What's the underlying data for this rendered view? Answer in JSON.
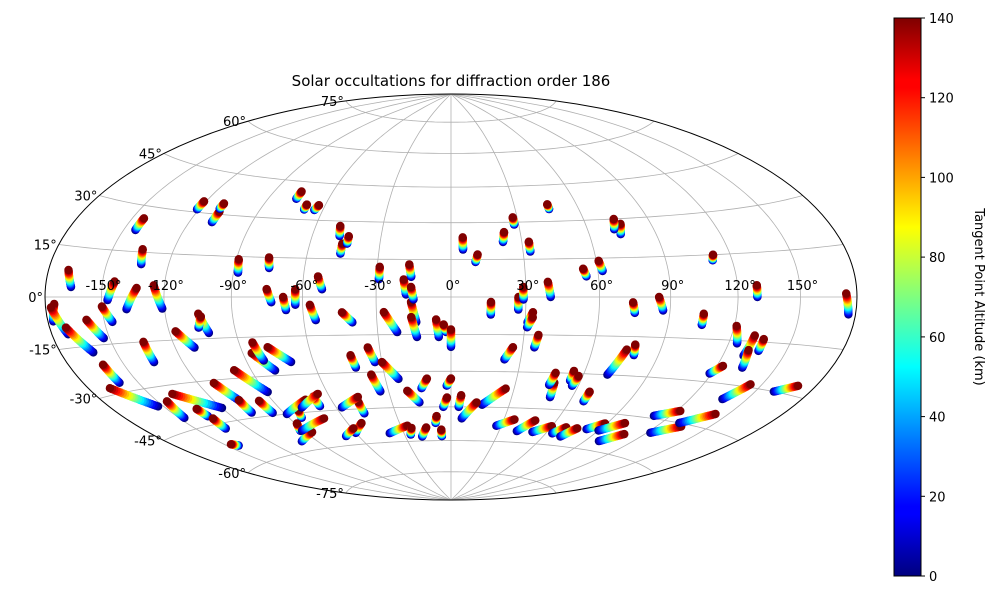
{
  "chart_data": {
    "type": "scatter",
    "projection": "hammer",
    "title": "Solar occultations for diffraction order 186",
    "colorbar": {
      "label": "Tangent Point Altitude (km)",
      "range": [
        0,
        140
      ],
      "ticks": [
        0,
        20,
        40,
        60,
        80,
        100,
        120,
        140
      ],
      "colormap": "jet"
    },
    "lon_ticks": [
      -150,
      -120,
      -90,
      -60,
      -30,
      0,
      30,
      60,
      90,
      120,
      150
    ],
    "lon_tick_labels": [
      "-150°",
      "-120°",
      "-90°",
      "-60°",
      "-30°",
      "0°",
      "30°",
      "60°",
      "90°",
      "120°",
      "150°"
    ],
    "lat_ticks": [
      -75,
      -60,
      -45,
      -30,
      -15,
      0,
      15,
      30,
      45,
      60,
      75
    ],
    "lat_tick_labels": [
      "-75°",
      "-60°",
      "-45°",
      "-30°",
      "-15°",
      "0°",
      "15°",
      "30°",
      "45°",
      "60°",
      "75°"
    ],
    "grid": true,
    "alt_range": [
      0,
      140
    ],
    "tracks": [
      [
        -177,
        -7,
        -175,
        -2
      ],
      [
        -171,
        -11,
        -177,
        -3
      ],
      [
        -162,
        -17,
        -171,
        -9
      ],
      [
        -166,
        3,
        -169,
        8
      ],
      [
        -153,
        -13,
        -159,
        -7
      ],
      [
        -146,
        -8,
        -150,
        -3
      ],
      [
        -147,
        -1,
        -144,
        5
      ],
      [
        -144,
        22,
        -144,
        26
      ],
      [
        -133,
        11,
        -135,
        16
      ],
      [
        -138,
        -4,
        -133,
        3
      ],
      [
        -121,
        -4,
        -125,
        4
      ],
      [
        -111,
        -18,
        -117,
        -12
      ],
      [
        -109,
        27,
        -109,
        31
      ],
      [
        -121,
        31,
        -121,
        34
      ],
      [
        -110,
        32,
        -110,
        34
      ],
      [
        -102,
        -13,
        -105,
        -6
      ],
      [
        -106,
        -11,
        -104,
        -7
      ],
      [
        -134,
        -22,
        -134,
        -15
      ],
      [
        -160,
        -27,
        -161,
        -21
      ],
      [
        -153,
        -36,
        -168,
        -28
      ],
      [
        -120,
        -40,
        -138,
        -33
      ],
      [
        -147,
        -41,
        -145,
        -35
      ],
      [
        -133,
        -42,
        -134,
        -39
      ],
      [
        -143,
        -53,
        -146,
        -52
      ],
      [
        -133,
        -47,
        -132,
        -43
      ],
      [
        -107,
        -38,
        -112,
        -31
      ],
      [
        -107,
        -43,
        -107,
        -38
      ],
      [
        -96,
        -44,
        -97,
        -39
      ],
      [
        -89,
        -36,
        -98,
        -27
      ],
      [
        -79,
        -28,
        -86,
        -21
      ],
      [
        -70,
        -25,
        -78,
        -19
      ],
      [
        -82,
        -24,
        -84,
        -17
      ],
      [
        -73,
        -2,
        -75,
        3
      ],
      [
        -67,
        -5,
        -68,
        0
      ],
      [
        -63,
        -3,
        -63,
        3
      ],
      [
        -55,
        -9,
        -57,
        -3
      ],
      [
        -52,
        3,
        -54,
        8
      ],
      [
        -40,
        -10,
        -44,
        -6
      ],
      [
        -42,
        -28,
        -43,
        -23
      ],
      [
        -34,
        -38,
        -36,
        -31
      ],
      [
        -33,
        -26,
        -35,
        -20
      ],
      [
        -24,
        -33,
        -30,
        -26
      ],
      [
        -16,
        -43,
        -21,
        -38
      ],
      [
        -22,
        -14,
        -27,
        -6
      ],
      [
        -14,
        -10,
        -16,
        -2
      ],
      [
        -14,
        -16,
        -16,
        -8
      ],
      [
        -18,
        1,
        -19,
        7
      ],
      [
        -15,
        -1,
        -16,
        4
      ],
      [
        -16,
        8,
        -17,
        13
      ],
      [
        -29,
        7,
        -29,
        12
      ],
      [
        -46,
        17,
        -46,
        21
      ],
      [
        -48,
        24,
        -49,
        28
      ],
      [
        -69,
        34,
        -69,
        36
      ],
      [
        -76,
        38,
        -76,
        41
      ],
      [
        -88,
        9,
        -89,
        14
      ],
      [
        -75,
        11,
        -76,
        15
      ],
      [
        -64,
        34,
        -63,
        36
      ],
      [
        -44,
        21,
        -44,
        24
      ],
      [
        -5,
        -16,
        -6,
        -9
      ],
      [
        -2,
        -14,
        -3,
        -11
      ],
      [
        0,
        -20,
        0,
        -13
      ],
      [
        5,
        19,
        5,
        24
      ],
      [
        10,
        14,
        11,
        17
      ],
      [
        16,
        -7,
        16,
        -2
      ],
      [
        22,
        22,
        23,
        26
      ],
      [
        28,
        29,
        28,
        32
      ],
      [
        33,
        18,
        33,
        22
      ],
      [
        40,
        0,
        39,
        6
      ],
      [
        27,
        -5,
        27,
        0
      ],
      [
        29,
        -1,
        29,
        4
      ],
      [
        31,
        -10,
        33,
        -6
      ],
      [
        35,
        -20,
        36,
        -15
      ],
      [
        31,
        -12,
        33,
        -8
      ],
      [
        23,
        -25,
        26,
        -20
      ],
      [
        46,
        35,
        46,
        37
      ],
      [
        55,
        8,
        54,
        11
      ],
      [
        62,
        10,
        61,
        14
      ],
      [
        74,
        24,
        76,
        28
      ],
      [
        72,
        26,
        74,
        30
      ],
      [
        75,
        -6,
        74,
        -2
      ],
      [
        79,
        -22,
        78,
        -18
      ],
      [
        71,
        -30,
        75,
        -20
      ],
      [
        55,
        -33,
        55,
        -29
      ],
      [
        49,
        -40,
        48,
        -34
      ],
      [
        46,
        -35,
        47,
        -30
      ],
      [
        57,
        -35,
        58,
        -31
      ],
      [
        67,
        -41,
        67,
        -37
      ],
      [
        87,
        -5,
        85,
        0
      ],
      [
        105,
        -10,
        105,
        -6
      ],
      [
        111,
        13,
        112,
        15
      ],
      [
        119,
        -27,
        123,
        -24
      ],
      [
        130,
        -20,
        131,
        -13
      ],
      [
        133,
        -24,
        131,
        -18
      ],
      [
        136,
        -18,
        136,
        -14
      ],
      [
        124,
        -16,
        121,
        -10
      ],
      [
        137,
        -35,
        144,
        -29
      ],
      [
        160,
        -30,
        170,
        -27
      ],
      [
        176,
        -5,
        174,
        1
      ],
      [
        129,
        0,
        129,
        4
      ],
      [
        16,
        -44,
        26,
        -37
      ],
      [
        6,
        -50,
        13,
        -43
      ],
      [
        41,
        -55,
        48,
        -50
      ],
      [
        51,
        -55,
        60,
        -52
      ],
      [
        64,
        -55,
        69,
        -52
      ],
      [
        71,
        -56,
        76,
        -52
      ],
      [
        82,
        -52,
        89,
        -49
      ],
      [
        90,
        -52,
        100,
        -48
      ],
      [
        99,
        -56,
        108,
        -52
      ],
      [
        111,
        -44,
        122,
        -41
      ],
      [
        122,
        -50,
        134,
        -46
      ],
      [
        130,
        -45,
        143,
        -40
      ],
      [
        27,
        -53,
        36,
        -50
      ],
      [
        -39,
        -56,
        -26,
        -53
      ],
      [
        -47,
        -47,
        -47,
        -42
      ],
      [
        -57,
        -44,
        -46,
        -40
      ],
      [
        -68,
        -43,
        -68,
        -39
      ],
      [
        -83,
        -47,
        -81,
        -44
      ],
      [
        -92,
        -52,
        -89,
        -49
      ],
      [
        -100,
        -56,
        -86,
        -53
      ],
      [
        -60,
        -55,
        -52,
        -51
      ],
      [
        -68,
        -56,
        -59,
        -53
      ],
      [
        -89,
        -45,
        -73,
        -40
      ],
      [
        -78,
        -43,
        -65,
        -38
      ],
      [
        -91,
        -52,
        -71,
        -48
      ],
      [
        -26,
        -57,
        -24,
        -54
      ],
      [
        -19,
        -58,
        -15,
        -54
      ],
      [
        -6,
        -58,
        -6,
        -55
      ],
      [
        4,
        -45,
        5,
        -40
      ],
      [
        -2,
        -36,
        0,
        -33
      ],
      [
        -14,
        -37,
        -11,
        -33
      ],
      [
        -9,
        -52,
        -8,
        -49
      ],
      [
        -4,
        -45,
        -2,
        -41
      ]
    ]
  }
}
